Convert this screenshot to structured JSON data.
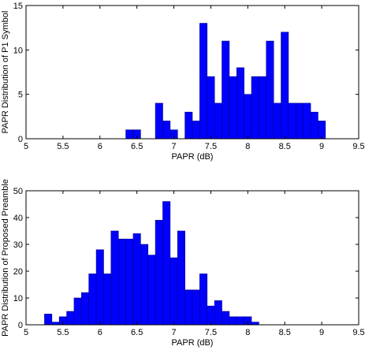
{
  "chart_data": [
    {
      "type": "bar",
      "xlabel": "PAPR (dB)",
      "ylabel": "PAPR Distribution of P1 Symbol",
      "xlim": [
        5,
        9.5
      ],
      "ylim": [
        0,
        15
      ],
      "xticks": [
        "5",
        "5.5",
        "6",
        "6.5",
        "7",
        "7.5",
        "8",
        "8.5",
        "9",
        "9.5"
      ],
      "yticks": [
        "0",
        "5",
        "10",
        "15"
      ],
      "bin_width": 0.1,
      "bar_color": "#0000ff",
      "bins": [
        {
          "x": 6.4,
          "y": 1
        },
        {
          "x": 6.5,
          "y": 1
        },
        {
          "x": 6.8,
          "y": 4
        },
        {
          "x": 6.9,
          "y": 2
        },
        {
          "x": 7.0,
          "y": 1
        },
        {
          "x": 7.2,
          "y": 3
        },
        {
          "x": 7.3,
          "y": 2
        },
        {
          "x": 7.4,
          "y": 13
        },
        {
          "x": 7.5,
          "y": 7
        },
        {
          "x": 7.6,
          "y": 4
        },
        {
          "x": 7.7,
          "y": 11
        },
        {
          "x": 7.8,
          "y": 7
        },
        {
          "x": 7.9,
          "y": 8
        },
        {
          "x": 8.0,
          "y": 5
        },
        {
          "x": 8.1,
          "y": 7
        },
        {
          "x": 8.2,
          "y": 7
        },
        {
          "x": 8.3,
          "y": 11
        },
        {
          "x": 8.4,
          "y": 4
        },
        {
          "x": 8.5,
          "y": 12
        },
        {
          "x": 8.6,
          "y": 4
        },
        {
          "x": 8.7,
          "y": 4
        },
        {
          "x": 8.8,
          "y": 4
        },
        {
          "x": 8.9,
          "y": 3
        },
        {
          "x": 9.0,
          "y": 2
        }
      ]
    },
    {
      "type": "bar",
      "xlabel": "PAPR (dB)",
      "ylabel": "PAPR Distribution of Proposed Preamble",
      "xlim": [
        5,
        9.5
      ],
      "ylim": [
        0,
        50
      ],
      "xticks": [
        "5",
        "5.5",
        "6",
        "6.5",
        "7",
        "7.5",
        "8",
        "8.5",
        "9",
        "9.5"
      ],
      "yticks": [
        "0",
        "10",
        "20",
        "30",
        "40",
        "50"
      ],
      "bin_width": 0.1,
      "bar_color": "#0000ff",
      "bins": [
        {
          "x": 5.3,
          "y": 4
        },
        {
          "x": 5.4,
          "y": 1
        },
        {
          "x": 5.5,
          "y": 3
        },
        {
          "x": 5.6,
          "y": 5
        },
        {
          "x": 5.7,
          "y": 10
        },
        {
          "x": 5.8,
          "y": 12
        },
        {
          "x": 5.9,
          "y": 19
        },
        {
          "x": 6.0,
          "y": 28
        },
        {
          "x": 6.1,
          "y": 19
        },
        {
          "x": 6.2,
          "y": 35
        },
        {
          "x": 6.3,
          "y": 32
        },
        {
          "x": 6.4,
          "y": 32
        },
        {
          "x": 6.5,
          "y": 34
        },
        {
          "x": 6.6,
          "y": 30
        },
        {
          "x": 6.7,
          "y": 26
        },
        {
          "x": 6.8,
          "y": 39
        },
        {
          "x": 6.9,
          "y": 46
        },
        {
          "x": 7.0,
          "y": 25
        },
        {
          "x": 7.1,
          "y": 35
        },
        {
          "x": 7.2,
          "y": 13
        },
        {
          "x": 7.3,
          "y": 13
        },
        {
          "x": 7.4,
          "y": 19
        },
        {
          "x": 7.5,
          "y": 7
        },
        {
          "x": 7.6,
          "y": 9
        },
        {
          "x": 7.7,
          "y": 5
        },
        {
          "x": 7.8,
          "y": 3
        },
        {
          "x": 7.9,
          "y": 3
        },
        {
          "x": 8.0,
          "y": 3
        },
        {
          "x": 8.1,
          "y": 1
        }
      ]
    }
  ]
}
